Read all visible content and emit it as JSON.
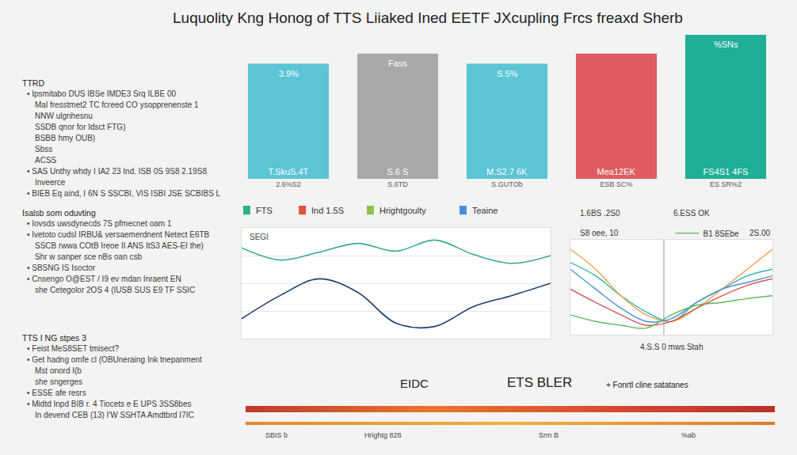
{
  "title": "Luquolity Kng Honog of TTS Liiaked Ined EETF JXcupling Frcs freaxd Sherb",
  "sidebar": [
    {
      "heading": "TTRD",
      "lines": [
        "• Ipsmitabo DUS IBSe IMDE3 Srq ILBE 00",
        "Mal fresstmet2 TC fcreed CO ysopprenenste 1",
        "NNW ulgnhesnu",
        "SSDB qnor for Idsct FTG)",
        "BSBB hmy OUB)",
        "Sbss",
        "ACSS",
        "• SAS Unthy whdy I IA2 23 Ind.  ISB 0S 9S8 2.19S8",
        "Inveerce",
        "• BIEB Eq aind, I 6N S SSCBI, VIS ISBI JSE SCBIBS L"
      ]
    },
    {
      "heading": "Isalsb som oduvting",
      "lines": [
        "• Iovsds uwsdynecds 7S pfmecnet oam 1",
        "• Ivetoto cudsl IRBU& versaemerdnent Netect E6TB",
        "SSCB rwwa COtB Ireoe II ANS ItS3 AES-EI the)",
        "Shr w sanper sce nBs oan csb",
        "• SBSNG IS Isoctor",
        "• Cnsengo O@EST / I9 ev mdan Inraent EN",
        "she Cetegolor 2OS 4 (IUSB SUS E9 TF SSIC"
      ]
    },
    {
      "heading": "TTS I NG stpes 3",
      "lines": [
        "• Feist MeS8SET tmisect?",
        "• Get hadng omfe cl (OBUneraing Ink tnepanment",
        "Mst onord I(b",
        "she sngerges",
        "• ESSE afe resrs",
        "• Midtd Inpd BIB r. 4 Tiocets  e E UPS 3SS8bes",
        "In devend CEB (13) I'W SSHTA Amdtbrd I7IC"
      ]
    }
  ],
  "chart_data": [
    {
      "type": "bar",
      "categories": [
        "2.6%S2",
        "S.6TD",
        "S.GUTOb",
        "ESB SC%",
        "ES SR%2"
      ],
      "values": [
        147,
        160,
        147,
        160,
        184
      ],
      "colors": [
        "#5bc5d6",
        "#a9a9a9",
        "#5bc5d6",
        "#e05c61",
        "#1fae96"
      ],
      "ylim": [
        0,
        190
      ],
      "grid": false,
      "tick_labels": "x",
      "top_labels": [
        "3.9%",
        "Fass",
        "S.5%",
        null,
        "%SNs"
      ],
      "inner_labels": [
        "T.SkuS.4T",
        "S.6 S",
        "M.S2.7 6K",
        "Mea12EK",
        "FS4S1 4FS"
      ]
    },
    {
      "type": "line",
      "header": [
        "FTS",
        "Ind 1.5S",
        "Hrightgoulty",
        "Teaine"
      ],
      "label": "SEGI",
      "x": [
        0,
        1,
        2,
        3,
        4,
        5,
        6,
        7,
        8
      ],
      "xlim": [
        0,
        8
      ],
      "ylim": [
        0,
        100
      ],
      "yticks": [
        0,
        25,
        50,
        75,
        100
      ],
      "grid": true,
      "tick_labels": false,
      "series": [
        {
          "color": "#3aaa8c",
          "values": [
            82,
            71,
            78,
            86,
            79,
            89,
            76,
            68,
            75
          ]
        },
        {
          "color": "#1f3f6e",
          "values": [
            18,
            39,
            54,
            42,
            14,
            11,
            29,
            39,
            50
          ]
        }
      ]
    },
    {
      "type": "line",
      "annotations": [
        "1.6BS .2S0",
        "6.ESS OK",
        "S8 oee, 10",
        "2S.00",
        "4.S.S 0 mws Stah"
      ],
      "vline_x": 3.7,
      "x": [
        0,
        1,
        2,
        3,
        4,
        5,
        6,
        7,
        8
      ],
      "xlim": [
        0,
        8
      ],
      "ylim": [
        0,
        100
      ],
      "grid": false,
      "tick_labels": false,
      "series": [
        {
          "color": "#2bb5b0",
          "values": [
            76,
            62,
            41,
            24,
            14,
            34,
            48,
            62,
            69
          ]
        },
        {
          "color": "#f0a04b",
          "values": [
            90,
            69,
            41,
            21,
            14,
            28,
            48,
            69,
            90
          ]
        },
        {
          "color": "#4a90d9",
          "values": [
            69,
            48,
            28,
            14,
            17,
            34,
            48,
            55,
            62
          ]
        },
        {
          "color": "#d9534f",
          "values": [
            48,
            34,
            21,
            10,
            14,
            28,
            41,
            52,
            59
          ]
        },
        {
          "name": "B1 8SEbe",
          "color": "#5cb85c",
          "values": [
            21,
            14,
            10,
            7,
            21,
            31,
            34,
            38,
            41
          ]
        }
      ]
    }
  ],
  "footer": {
    "texts": [
      "EIDC",
      "ETS BLER",
      "+ Fonrtl cline satatanes"
    ],
    "scale_labels": [
      "SBIS b",
      "Hrightg 828",
      "Srm B",
      "%ab"
    ]
  }
}
